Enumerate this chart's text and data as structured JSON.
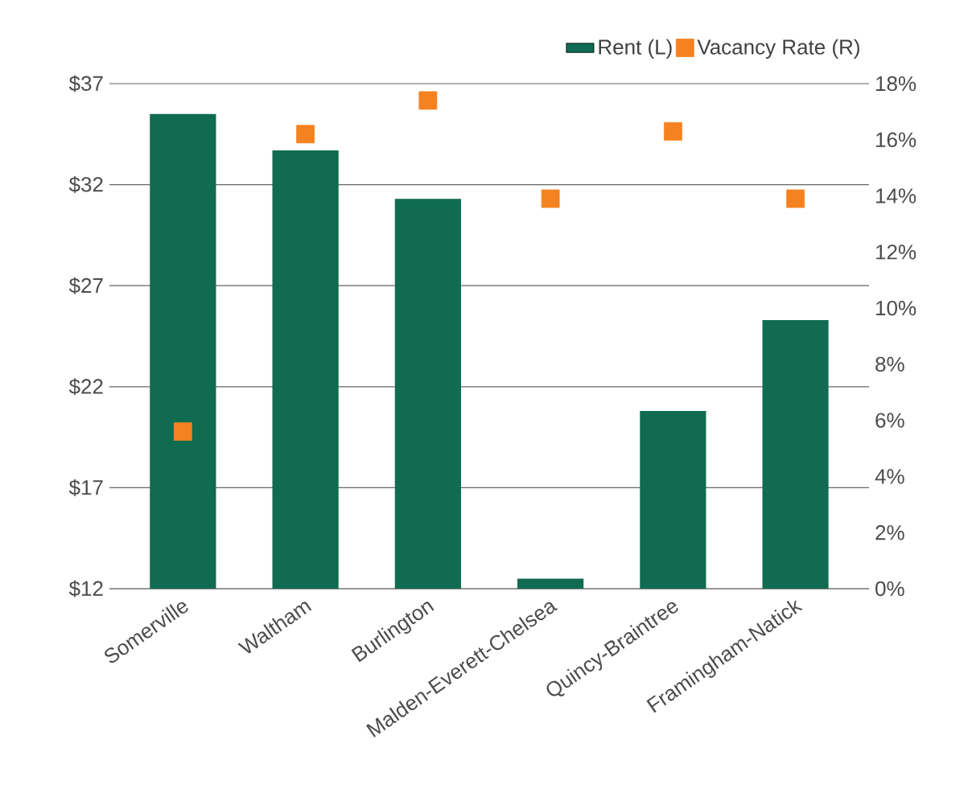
{
  "chart_data": {
    "type": "bar",
    "categories": [
      "Somerville",
      "Waltham",
      "Burlington",
      "Malden-Everett-Chelsea",
      "Quincy-Braintree",
      "Framingham-Natick"
    ],
    "series": [
      {
        "name": "Rent (L)",
        "color": "#106b50",
        "values": [
          35.5,
          33.7,
          31.3,
          12.5,
          20.8,
          25.3
        ]
      },
      {
        "name": "Vacancy Rate (R)",
        "type": "scatter",
        "axis": "y2",
        "marker": "square",
        "color": "#f58220",
        "values": [
          5.6,
          16.2,
          17.4,
          13.9,
          16.3,
          13.9
        ]
      }
    ],
    "ylim": [
      12,
      37
    ],
    "yticks": [
      {
        "value": 12,
        "label": "$12"
      },
      {
        "value": 17,
        "label": "$17"
      },
      {
        "value": 22,
        "label": "$22"
      },
      {
        "value": 27,
        "label": "$27"
      },
      {
        "value": 32,
        "label": "$32"
      },
      {
        "value": 37,
        "label": "$37"
      }
    ],
    "y2lim": [
      0,
      18
    ],
    "y2ticks": [
      {
        "value": 0,
        "label": "0%"
      },
      {
        "value": 2,
        "label": "2%"
      },
      {
        "value": 4,
        "label": "4%"
      },
      {
        "value": 6,
        "label": "6%"
      },
      {
        "value": 8,
        "label": "8%"
      },
      {
        "value": 10,
        "label": "10%"
      },
      {
        "value": 12,
        "label": "12%"
      },
      {
        "value": 14,
        "label": "14%"
      },
      {
        "value": 16,
        "label": "16%"
      },
      {
        "value": 18,
        "label": "18%"
      }
    ],
    "grid": "y",
    "legend": "top right"
  }
}
